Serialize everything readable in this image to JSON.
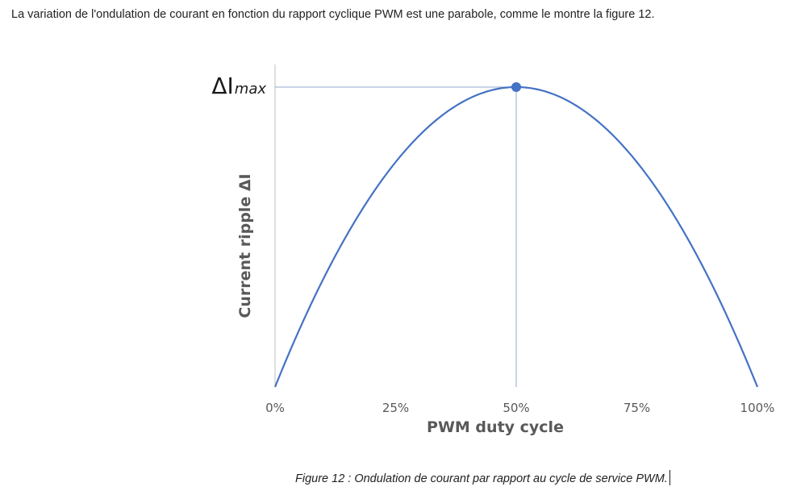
{
  "intro_text": "La variation de l'ondulation de courant en fonction du rapport cyclique PWM est une parabole, comme le montre la figure 12.",
  "caption": "Figure 12 : Ondulation de courant par rapport au cycle de service PWM.",
  "chart_data": {
    "type": "line",
    "xlabel": "PWM duty cycle",
    "ylabel": "Current ripple ΔI",
    "x_ticks": [
      "0%",
      "25%",
      "50%",
      "75%",
      "100%"
    ],
    "xlim": [
      0,
      100
    ],
    "ylim": [
      0,
      1
    ],
    "grid": false,
    "series": [
      {
        "x": [
          0,
          10,
          20,
          25,
          30,
          40,
          50,
          60,
          70,
          75,
          80,
          90,
          100
        ],
        "y": [
          0,
          0.36,
          0.64,
          0.75,
          0.84,
          0.96,
          1.0,
          0.96,
          0.84,
          0.75,
          0.64,
          0.36,
          0
        ],
        "color": "#4472C4"
      }
    ],
    "peak": {
      "x": 50,
      "y": 1.0,
      "label_main": "ΔI",
      "label_sub": "max"
    },
    "line_color": "#4472C4",
    "guide_color": "#8FAACF",
    "axis_color": "#BFBFBF"
  }
}
